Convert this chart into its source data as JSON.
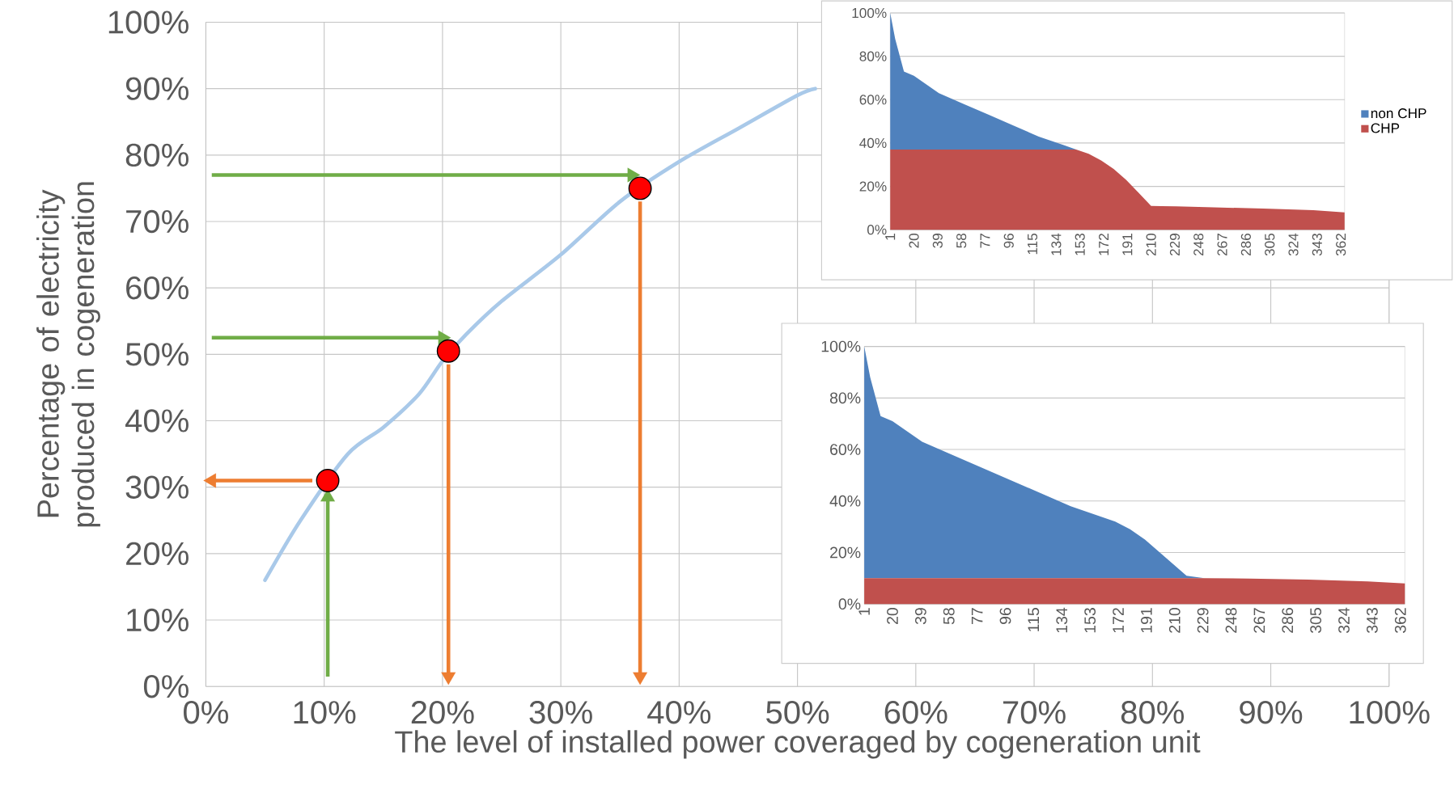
{
  "chart_data": [
    {
      "type": "line",
      "xlabel": "The level of installed power coveraged by cogeneration unit",
      "ylabel": "Percentage of electricity produced in cogeneration",
      "xlim": [
        0,
        100
      ],
      "ylim": [
        0,
        100
      ],
      "xticks": [
        {
          "value": 0,
          "label": "0%"
        },
        {
          "value": 10,
          "label": "10%"
        },
        {
          "value": 20,
          "label": "20%"
        },
        {
          "value": 30,
          "label": "30%"
        },
        {
          "value": 40,
          "label": "40%"
        },
        {
          "value": 50,
          "label": "50%"
        },
        {
          "value": 60,
          "label": "60%"
        },
        {
          "value": 70,
          "label": "70%"
        },
        {
          "value": 80,
          "label": "80%"
        },
        {
          "value": 90,
          "label": "90%"
        },
        {
          "value": 100,
          "label": "100%"
        }
      ],
      "yticks": [
        {
          "value": 0,
          "label": "0%"
        },
        {
          "value": 10,
          "label": "10%"
        },
        {
          "value": 20,
          "label": "20%"
        },
        {
          "value": 30,
          "label": "30%"
        },
        {
          "value": 40,
          "label": "40%"
        },
        {
          "value": 50,
          "label": "50%"
        },
        {
          "value": 60,
          "label": "60%"
        },
        {
          "value": 70,
          "label": "70%"
        },
        {
          "value": 80,
          "label": "80%"
        },
        {
          "value": 90,
          "label": "90%"
        },
        {
          "value": 100,
          "label": "100%"
        }
      ],
      "grid": true,
      "series": [
        {
          "type": "line",
          "color": "#a9c9e9",
          "x": [
            5,
            8,
            12,
            15,
            18,
            20,
            22,
            25,
            30,
            35,
            40,
            45,
            50,
            51.5
          ],
          "values": [
            16,
            25,
            35,
            39,
            44,
            49,
            53,
            58,
            65,
            73,
            79,
            84,
            89,
            90
          ]
        },
        {
          "type": "line",
          "color": "#70ad47",
          "x": [
            0.5,
            36
          ],
          "values": [
            77,
            77
          ]
        },
        {
          "type": "line",
          "color": "#70ad47",
          "x": [
            0.5,
            20
          ],
          "values": [
            52.5,
            52.5
          ]
        },
        {
          "type": "line",
          "color": "#70ad47",
          "x": [
            10.3,
            10.3
          ],
          "values": [
            1.5,
            28.5
          ]
        },
        {
          "type": "line",
          "color": "#ed7d31",
          "x": [
            9,
            0.5
          ],
          "values": [
            31,
            31
          ]
        },
        {
          "type": "line",
          "color": "#ed7d31",
          "x": [
            20.5,
            20.5
          ],
          "values": [
            48.5,
            1.5
          ]
        },
        {
          "type": "line",
          "color": "#ed7d31",
          "x": [
            36.7,
            36.7
          ],
          "values": [
            73,
            1.5
          ]
        },
        {
          "type": "scatter",
          "color": "#ff0000",
          "x": [
            10.3,
            20.5,
            36.7
          ],
          "values": [
            31,
            50.5,
            75
          ]
        }
      ]
    },
    {
      "type": "area",
      "stacked": true,
      "grid": "y",
      "legend": "right",
      "x": [
        1,
        5,
        12,
        20,
        40,
        60,
        80,
        100,
        120,
        140,
        150,
        160,
        170,
        180,
        190,
        200,
        210,
        218,
        230,
        260,
        300,
        340,
        365
      ],
      "xlim": [
        1,
        365
      ],
      "ylim": [
        0,
        100
      ],
      "xticks": [
        1,
        20,
        39,
        58,
        77,
        96,
        115,
        134,
        153,
        172,
        191,
        210,
        229,
        248,
        267,
        286,
        305,
        324,
        343,
        362
      ],
      "yticks": [
        {
          "value": 0,
          "label": "0%"
        },
        {
          "value": 20,
          "label": "20%"
        },
        {
          "value": 40,
          "label": "40%"
        },
        {
          "value": 60,
          "label": "60%"
        },
        {
          "value": 80,
          "label": "80%"
        },
        {
          "value": 100,
          "label": "100%"
        }
      ],
      "series": [
        {
          "name": "CHP",
          "color": "#c0504d",
          "values": [
            37,
            37,
            37,
            37,
            37,
            37,
            37,
            37,
            37,
            37,
            37,
            35,
            32,
            28,
            23,
            17,
            11,
            10.9,
            10.8,
            10.3,
            9.8,
            9,
            8
          ]
        },
        {
          "name": "non CHP",
          "color": "#4f81bd",
          "values": [
            63,
            51,
            36,
            34,
            26,
            21,
            16,
            11,
            6,
            2,
            0,
            0,
            0,
            0,
            0,
            0,
            0,
            0,
            0,
            0,
            0,
            0,
            0
          ]
        }
      ]
    },
    {
      "type": "area",
      "stacked": true,
      "grid": "y",
      "x": [
        1,
        5,
        12,
        20,
        40,
        60,
        80,
        100,
        120,
        140,
        150,
        160,
        170,
        180,
        190,
        200,
        210,
        218,
        230,
        260,
        300,
        340,
        365
      ],
      "xlim": [
        1,
        365
      ],
      "ylim": [
        0,
        100
      ],
      "xticks": [
        1,
        20,
        39,
        58,
        77,
        96,
        115,
        134,
        153,
        172,
        191,
        210,
        229,
        248,
        267,
        286,
        305,
        324,
        343,
        362
      ],
      "yticks": [
        {
          "value": 0,
          "label": "0%"
        },
        {
          "value": 20,
          "label": "20%"
        },
        {
          "value": 40,
          "label": "40%"
        },
        {
          "value": 60,
          "label": "60%"
        },
        {
          "value": 80,
          "label": "80%"
        },
        {
          "value": 100,
          "label": "100%"
        }
      ],
      "series": [
        {
          "color": "#c0504d",
          "values": [
            10,
            10,
            10,
            10,
            10,
            10,
            10,
            10,
            10,
            10,
            10,
            10,
            10,
            10,
            10,
            10,
            10,
            10,
            10,
            9.9,
            9.5,
            8.8,
            8
          ]
        },
        {
          "color": "#4f81bd",
          "values": [
            90,
            78,
            63,
            61,
            53,
            48,
            43,
            38,
            33,
            28,
            26,
            24,
            22,
            19,
            15,
            10,
            5,
            1,
            0,
            0,
            0,
            0,
            0
          ]
        }
      ]
    }
  ]
}
